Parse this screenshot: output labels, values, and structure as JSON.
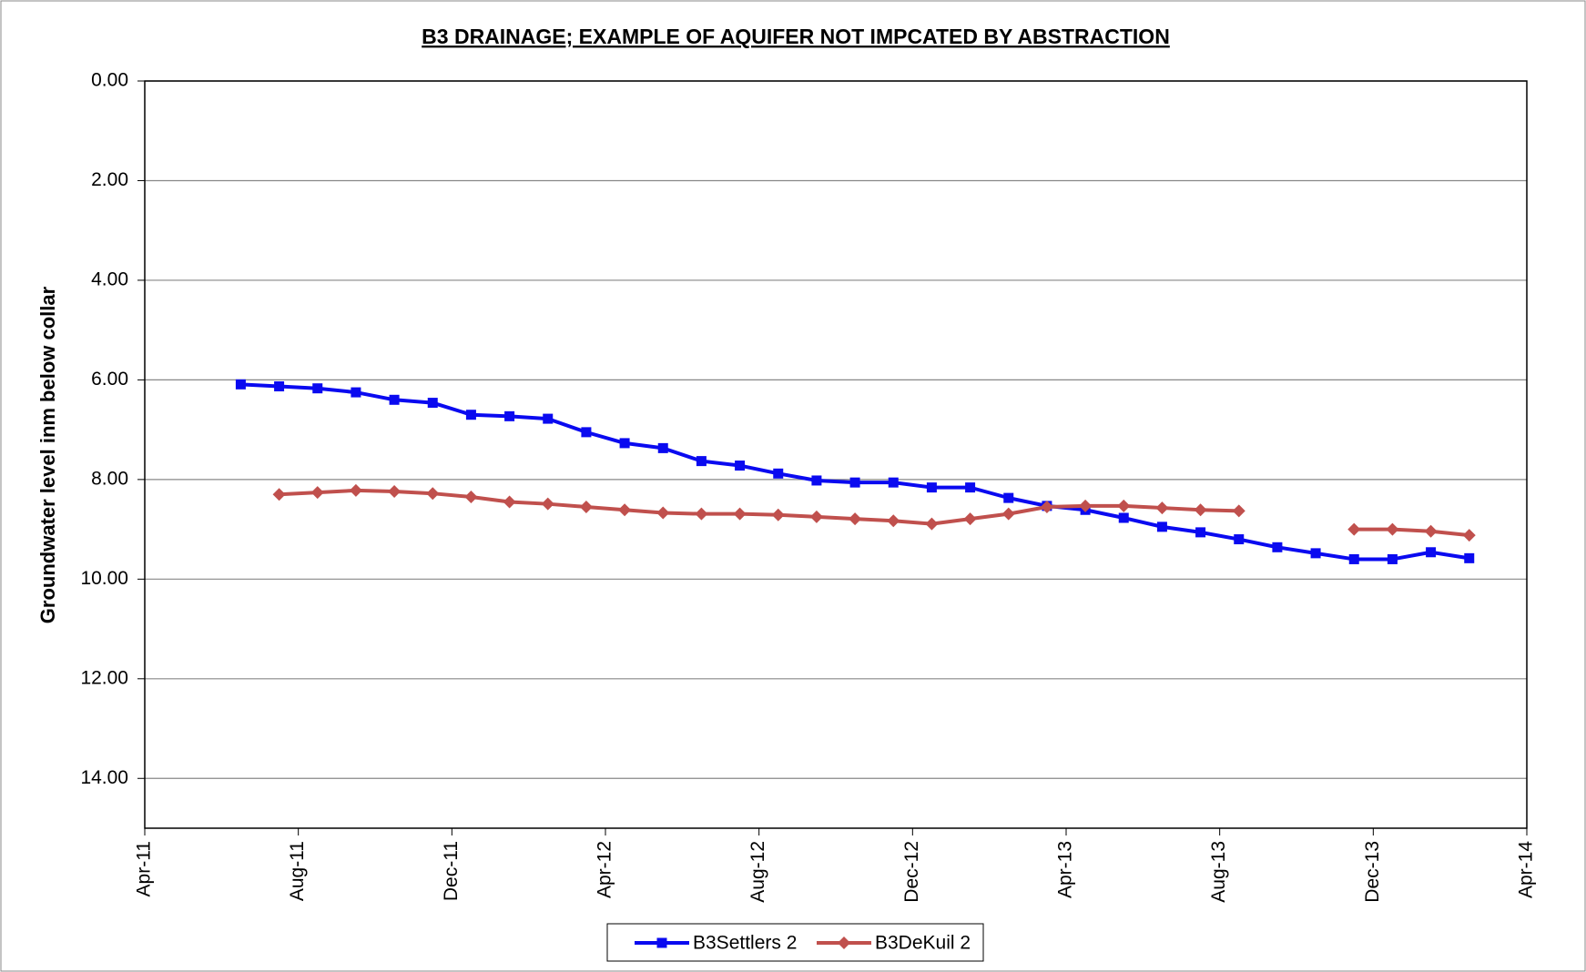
{
  "chart_data": {
    "type": "line",
    "title": "B3 DRAINAGE; EXAMPLE OF AQUIFER NOT  IMPCATED BY ABSTRACTION",
    "y_label": "Groundwater level inm below collar",
    "x": [
      "2011-06",
      "2011-07",
      "2011-08",
      "2011-09",
      "2011-10",
      "2011-11",
      "2011-12",
      "2012-01",
      "2012-02",
      "2012-03",
      "2012-04",
      "2012-05",
      "2012-06",
      "2012-07",
      "2012-08",
      "2012-09",
      "2012-10",
      "2012-11",
      "2012-12",
      "2013-01",
      "2013-02",
      "2013-03",
      "2013-04",
      "2013-05",
      "2013-06",
      "2013-07",
      "2013-08",
      "2013-09",
      "2013-10",
      "2013-11",
      "2013-12",
      "2014-01",
      "2014-02"
    ],
    "series": [
      {
        "name": "B3Settlers 2",
        "color": "#0a0af0",
        "marker": "square",
        "values": [
          6.09,
          6.13,
          6.17,
          6.25,
          6.4,
          6.46,
          6.7,
          6.73,
          6.78,
          7.05,
          7.27,
          7.37,
          7.63,
          7.72,
          7.88,
          8.02,
          8.06,
          8.06,
          8.16,
          8.16,
          8.37,
          8.53,
          8.61,
          8.77,
          8.95,
          9.06,
          9.2,
          9.36,
          9.48,
          9.6,
          9.6,
          9.46,
          9.58
        ]
      },
      {
        "name": "B3DeKuil 2",
        "color": "#c0504d",
        "marker": "diamond",
        "values": [
          null,
          8.3,
          8.26,
          8.22,
          8.24,
          8.28,
          8.35,
          8.45,
          8.49,
          8.55,
          8.61,
          8.67,
          8.69,
          8.69,
          8.71,
          8.75,
          8.79,
          8.83,
          8.89,
          8.79,
          8.69,
          8.55,
          8.53,
          8.53,
          8.57,
          8.61,
          8.63,
          null,
          null,
          9.0,
          9.0,
          9.04,
          9.12
        ]
      }
    ],
    "xlim": [
      "2011-04",
      "2014-04"
    ],
    "xticks": [
      {
        "value": "2011-04",
        "label": "Apr-11"
      },
      {
        "value": "2011-08",
        "label": "Aug-11"
      },
      {
        "value": "2011-12",
        "label": "Dec-11"
      },
      {
        "value": "2012-04",
        "label": "Apr-12"
      },
      {
        "value": "2012-08",
        "label": "Aug-12"
      },
      {
        "value": "2012-12",
        "label": "Dec-12"
      },
      {
        "value": "2013-04",
        "label": "Apr-13"
      },
      {
        "value": "2013-08",
        "label": "Aug-13"
      },
      {
        "value": "2013-12",
        "label": "Dec-13"
      },
      {
        "value": "2014-04",
        "label": "Apr-14"
      }
    ],
    "ylim": [
      0,
      15
    ],
    "y_inverted": true,
    "yticks": [
      {
        "value": 0,
        "label": "0.00"
      },
      {
        "value": 2,
        "label": "2.00"
      },
      {
        "value": 4,
        "label": "4.00"
      },
      {
        "value": 6,
        "label": "6.00"
      },
      {
        "value": 8,
        "label": "8.00"
      },
      {
        "value": 10,
        "label": "10.00"
      },
      {
        "value": 12,
        "label": "12.00"
      },
      {
        "value": 14,
        "label": "14.00"
      }
    ],
    "grid": true,
    "legend": "bottom"
  }
}
